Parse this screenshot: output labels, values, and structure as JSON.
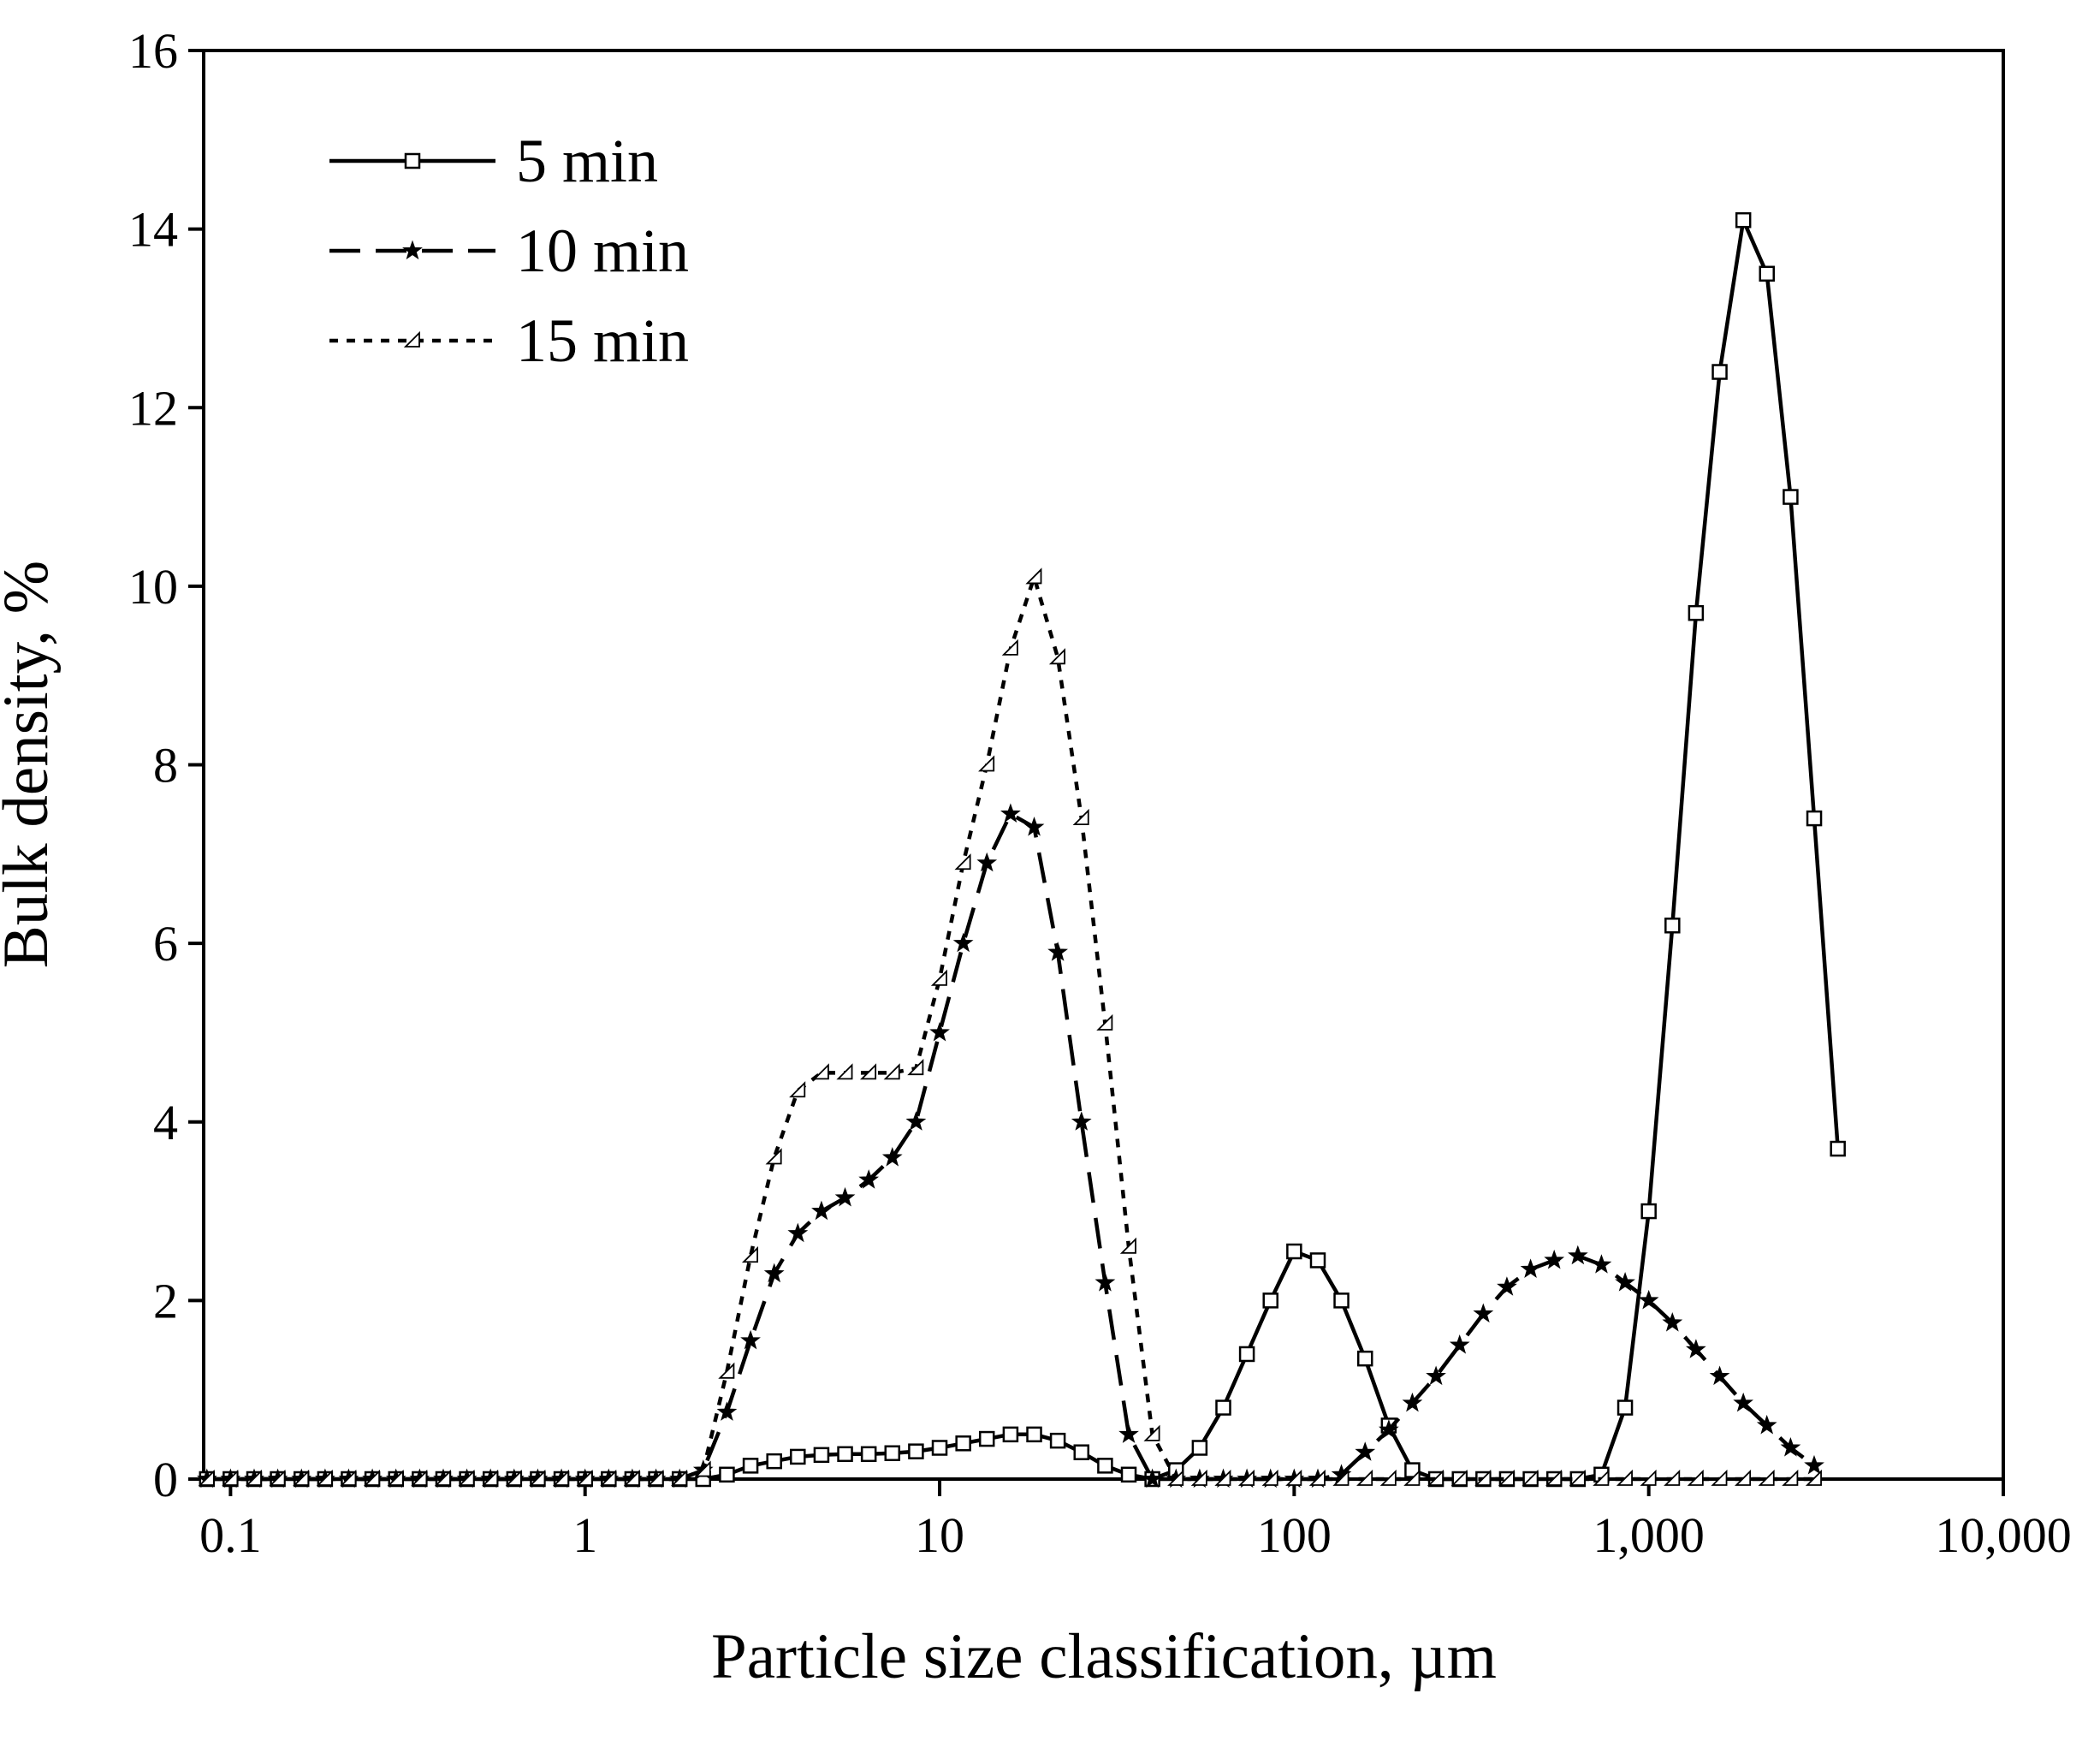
{
  "chart_data": {
    "type": "line",
    "xlabel": "Particle size classification, µm",
    "ylabel": "Bulk density, %",
    "xscale": "log",
    "xlim": [
      0.084,
      10000
    ],
    "ylim": [
      0,
      16
    ],
    "xticks": [
      0.1,
      1,
      10,
      100,
      {
        "value": 1000,
        "label": "1,000"
      },
      {
        "value": 10000,
        "label": "10,000"
      }
    ],
    "yticks": [
      0,
      2,
      4,
      6,
      8,
      10,
      12,
      14,
      16
    ],
    "legend": "upper left",
    "x": [
      0.0858,
      0.1,
      0.1166,
      0.1359,
      0.1585,
      0.1848,
      0.2154,
      0.2512,
      0.2929,
      0.3415,
      0.3981,
      0.4642,
      0.5412,
      0.631,
      0.7356,
      0.8577,
      1,
      1.166,
      1.359,
      1.585,
      1.848,
      2.154,
      2.512,
      2.929,
      3.415,
      3.981,
      4.642,
      5.412,
      6.31,
      7.356,
      8.577,
      10,
      11.66,
      13.59,
      15.85,
      18.48,
      21.54,
      25.12,
      29.29,
      34.15,
      39.81,
      46.42,
      54.12,
      63.1,
      73.56,
      85.77,
      100,
      116.6,
      135.9,
      158.5,
      184.8,
      215.4,
      251.2,
      292.9,
      341.5,
      398.1,
      464.2,
      541.2,
      631,
      735.6,
      857.7,
      1000,
      1166,
      1359,
      1585,
      1848,
      2154,
      2512,
      2929,
      3415
    ],
    "series": [
      {
        "name": "5 min",
        "color": "#000000",
        "line": "solid",
        "marker": "square",
        "values": [
          0,
          0,
          0,
          0,
          0,
          0,
          0,
          0,
          0,
          0,
          0,
          0,
          0,
          0,
          0,
          0,
          0,
          0,
          0,
          0,
          0,
          0,
          0.05,
          0.15,
          0.2,
          0.25,
          0.27,
          0.28,
          0.28,
          0.29,
          0.31,
          0.35,
          0.4,
          0.45,
          0.5,
          0.5,
          0.43,
          0.3,
          0.15,
          0.05,
          0,
          0.1,
          0.35,
          0.8,
          1.4,
          2.0,
          2.55,
          2.45,
          2.0,
          1.35,
          0.6,
          0.1,
          0,
          0,
          0,
          0,
          0,
          0,
          0,
          0.05,
          0.8,
          3.0,
          6.2,
          9.7,
          12.4,
          14.1,
          13.5,
          11.0,
          7.4,
          3.7
        ]
      },
      {
        "name": "10 min",
        "color": "#000000",
        "line": "dashed",
        "marker": "star",
        "values": [
          0,
          0,
          0,
          0,
          0,
          0,
          0,
          0,
          0,
          0,
          0,
          0,
          0,
          0,
          0,
          0,
          0,
          0,
          0,
          0,
          0,
          0.1,
          0.75,
          1.55,
          2.3,
          2.75,
          3.0,
          3.15,
          3.35,
          3.6,
          4.0,
          5.0,
          6.0,
          6.9,
          7.45,
          7.3,
          5.9,
          4.0,
          2.2,
          0.5,
          0,
          0,
          0,
          0,
          0,
          0,
          0,
          0,
          0.05,
          0.3,
          0.55,
          0.85,
          1.15,
          1.5,
          1.85,
          2.15,
          2.35,
          2.45,
          2.5,
          2.4,
          2.2,
          2.0,
          1.75,
          1.45,
          1.15,
          0.85,
          0.6,
          0.35,
          0.15,
          null
        ]
      },
      {
        "name": "15 min",
        "color": "#000000",
        "line": "dotted",
        "marker": "triangle",
        "values": [
          0,
          0,
          0,
          0,
          0,
          0,
          0,
          0,
          0,
          0,
          0,
          0,
          0,
          0,
          0,
          0,
          0,
          0,
          0,
          0,
          0,
          0.1,
          1.2,
          2.5,
          3.6,
          4.35,
          4.55,
          4.55,
          4.55,
          4.55,
          4.6,
          5.6,
          6.9,
          8.0,
          9.3,
          10.1,
          9.2,
          7.4,
          5.1,
          2.6,
          0.5,
          0,
          0,
          0,
          0,
          0,
          0,
          0,
          0,
          0,
          0,
          0,
          0,
          0,
          0,
          0,
          0,
          0,
          0,
          0,
          0,
          0,
          0,
          0,
          0,
          0,
          0,
          0,
          0,
          null
        ]
      }
    ]
  }
}
